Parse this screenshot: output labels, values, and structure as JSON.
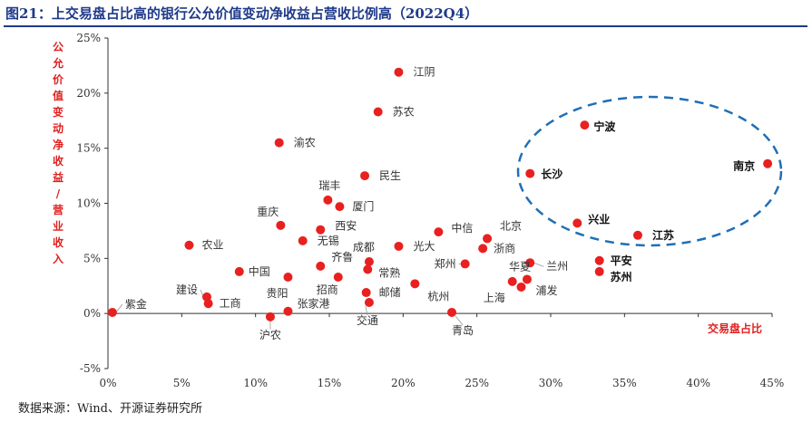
{
  "title": "图21：上交易盘占比高的银行公允价值变动净收益占营收比例高（2022Q4）",
  "source": "数据来源：Wind、开源证券研究所",
  "chart_data": {
    "type": "scatter",
    "xlabel": "交易盘占比",
    "ylabel": "公允价值变动净收益/营业收入",
    "xlim": [
      0,
      45
    ],
    "ylim": [
      -5,
      25
    ],
    "x_ticks": [
      "0%",
      "5%",
      "10%",
      "15%",
      "20%",
      "25%",
      "30%",
      "35%",
      "40%",
      "45%"
    ],
    "y_ticks": [
      "-5%",
      "0%",
      "5%",
      "10%",
      "15%",
      "20%",
      "25%"
    ],
    "grid": false,
    "marker_color": "#e82020",
    "label_color": "#333333",
    "circle_color": "#1f6fb5",
    "points": [
      {
        "name": "紫金",
        "x": 0.3,
        "y": 0.1
      },
      {
        "name": "农业",
        "x": 5.5,
        "y": 6.2
      },
      {
        "name": "中国",
        "x": 8.9,
        "y": 3.8
      },
      {
        "name": "建设",
        "x": 6.7,
        "y": 1.5
      },
      {
        "name": "工商",
        "x": 6.8,
        "y": 0.9
      },
      {
        "name": "重庆",
        "x": 11.7,
        "y": 8.0
      },
      {
        "name": "渝农",
        "x": 11.6,
        "y": 15.5
      },
      {
        "name": "贵阳",
        "x": 12.2,
        "y": 3.3
      },
      {
        "name": "沪农",
        "x": 11.0,
        "y": -0.3
      },
      {
        "name": "张家港",
        "x": 12.2,
        "y": 0.2
      },
      {
        "name": "无锡",
        "x": 13.2,
        "y": 6.6
      },
      {
        "name": "瑞丰",
        "x": 14.9,
        "y": 10.3
      },
      {
        "name": "西安",
        "x": 14.4,
        "y": 7.6
      },
      {
        "name": "齐鲁",
        "x": 14.4,
        "y": 4.3
      },
      {
        "name": "招商",
        "x": 15.6,
        "y": 3.3
      },
      {
        "name": "厦门",
        "x": 15.7,
        "y": 9.7
      },
      {
        "name": "民生",
        "x": 17.4,
        "y": 12.5
      },
      {
        "name": "成都",
        "x": 17.7,
        "y": 4.7
      },
      {
        "name": "常熟",
        "x": 17.6,
        "y": 4.0
      },
      {
        "name": "邮储",
        "x": 17.5,
        "y": 1.9
      },
      {
        "name": "交通",
        "x": 17.7,
        "y": 1.0
      },
      {
        "name": "江阴",
        "x": 19.7,
        "y": 21.9
      },
      {
        "name": "苏农",
        "x": 18.3,
        "y": 18.3
      },
      {
        "name": "光大",
        "x": 19.7,
        "y": 6.1
      },
      {
        "name": "杭州",
        "x": 20.8,
        "y": 2.7
      },
      {
        "name": "中信",
        "x": 22.4,
        "y": 7.4
      },
      {
        "name": "青岛",
        "x": 23.3,
        "y": 0.1
      },
      {
        "name": "郑州",
        "x": 24.2,
        "y": 4.5
      },
      {
        "name": "浙商",
        "x": 25.4,
        "y": 5.9
      },
      {
        "name": "北京",
        "x": 25.7,
        "y": 6.8
      },
      {
        "name": "华夏",
        "x": 28.4,
        "y": 3.1
      },
      {
        "name": "上海",
        "x": 27.4,
        "y": 2.9
      },
      {
        "name": "兰州",
        "x": 28.6,
        "y": 4.6
      },
      {
        "name": "浦发",
        "x": 28.0,
        "y": 2.4
      },
      {
        "name": "宁波",
        "x": 32.3,
        "y": 17.1
      },
      {
        "name": "长沙",
        "x": 28.6,
        "y": 12.7
      },
      {
        "name": "兴业",
        "x": 31.8,
        "y": 8.2
      },
      {
        "name": "江苏",
        "x": 35.9,
        "y": 7.1
      },
      {
        "name": "平安",
        "x": 33.3,
        "y": 4.8
      },
      {
        "name": "苏州",
        "x": 33.3,
        "y": 3.8
      },
      {
        "name": "南京",
        "x": 44.7,
        "y": 13.6
      }
    ]
  }
}
